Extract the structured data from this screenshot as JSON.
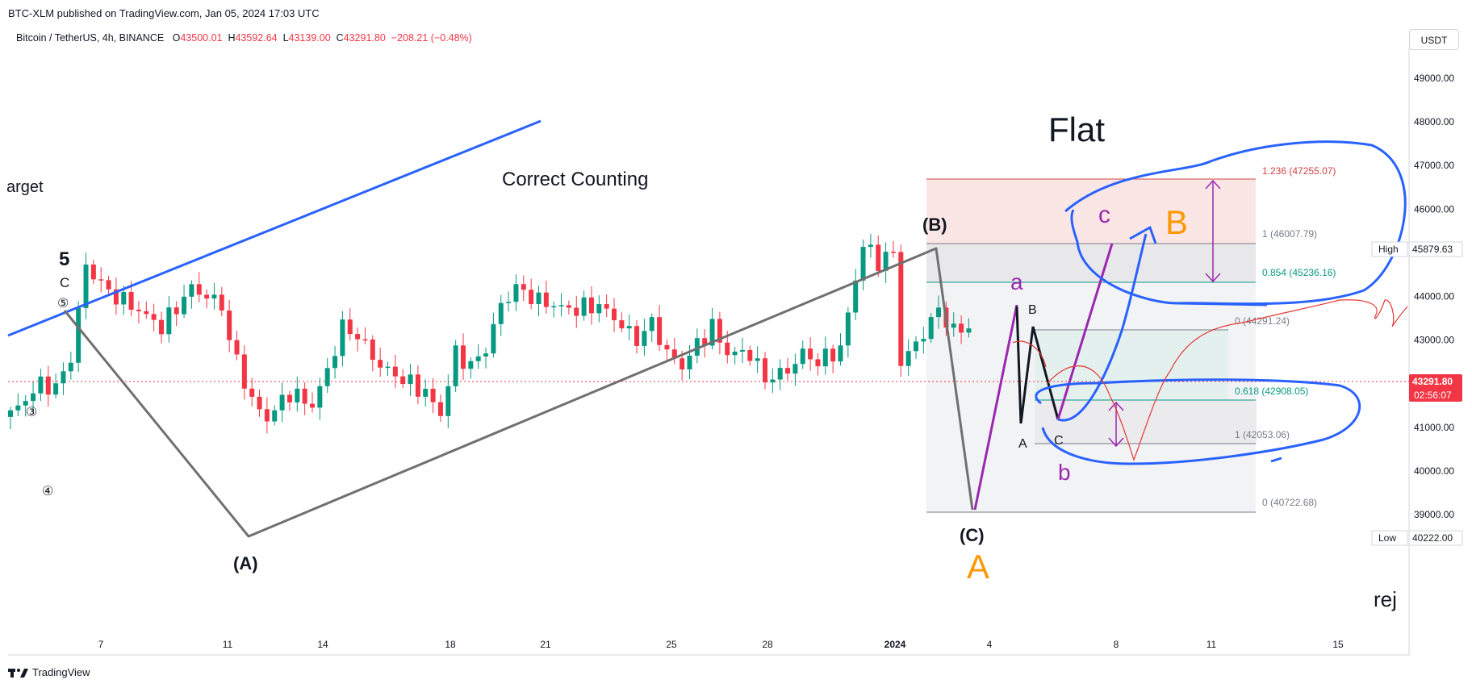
{
  "header": {
    "published": "BTC-XLM published on TradingView.com, Jan 05, 2024 17:03 UTC",
    "footer_brand": "TradingView"
  },
  "symbol_bar": {
    "name": "Bitcoin / TetherUS, 4h, BINANCE",
    "open_label": "O",
    "open": "43500.01",
    "high_label": "H",
    "high": "43592.64",
    "low_label": "L",
    "low": "43139.00",
    "close_label": "C",
    "close": "43291.80",
    "change": "−208.21 (−0.48%)",
    "currency_button": "USDT"
  },
  "price_tags": {
    "current_price": "43291.80",
    "countdown": "02:56:07",
    "high_label": "High",
    "high_value": "45879.63",
    "low_label": "Low",
    "low_value": "40222.00"
  },
  "annotations": {
    "correct_counting": "Correct Counting",
    "flat": "Flat",
    "target_partial": "arget",
    "rej_partial": "rej",
    "wave_5": "5",
    "wave_c_top": "C",
    "circle_5": "⑤",
    "circle_3": "③",
    "circle_4": "④",
    "wave_A_paren": "(A)",
    "wave_B_paren": "(B)",
    "wave_C_paren": "(C)",
    "big_A": "A",
    "big_B": "B",
    "small_a": "a",
    "small_b": "b",
    "small_c": "c",
    "mini_A": "A",
    "mini_B": "B",
    "mini_C": "C"
  },
  "fib_levels": [
    {
      "label": "1.236 (47255.07)",
      "price": 47255.07,
      "color": "#d14343"
    },
    {
      "label": "1 (46007.79)",
      "price": 46007.79,
      "color": "#787b86"
    },
    {
      "label": "0.854 (45236.16)",
      "price": 45236.16,
      "color": "#089981"
    },
    {
      "label": "0 (44291.24)",
      "price": 44291.24,
      "color": "#787b86"
    },
    {
      "label": "0.618 (42908.05)",
      "price": 42908.05,
      "color": "#089981"
    },
    {
      "label": "1 (42053.06)",
      "price": 42053.06,
      "color": "#787b86"
    },
    {
      "label": "0 (40722.68)",
      "price": 40722.68,
      "color": "#787b86"
    }
  ],
  "colors": {
    "up": "#089981",
    "down": "#f23645",
    "blue": "#2962ff",
    "gray": "#6e6e6e",
    "purple": "#9c27b0",
    "orange": "#ff9800"
  },
  "chart_data": {
    "type": "candlestick",
    "symbol": "Bitcoin / TetherUS",
    "interval": "4h",
    "exchange": "BINANCE",
    "y_ticks": [
      39000,
      40000,
      41000,
      42000,
      43000,
      44000,
      45000,
      46000,
      47000,
      48000,
      49000
    ],
    "y_tick_labels": [
      "39000.00",
      "40000.00",
      "41000.00",
      "42000.00",
      "43000.00",
      "44000.00",
      "45000.00",
      "46000.00",
      "47000.00",
      "48000.00",
      "49000.00"
    ],
    "x_ticks": [
      "7",
      "11",
      "14",
      "18",
      "21",
      "25",
      "28",
      "2024",
      "4",
      "8",
      "11",
      "15"
    ],
    "ohlc_waypoints": [
      [
        0,
        41300
      ],
      [
        4,
        42000
      ],
      [
        6,
        41900
      ],
      [
        8,
        42600
      ],
      [
        10,
        44700
      ],
      [
        13,
        44100
      ],
      [
        16,
        43800
      ],
      [
        20,
        43300
      ],
      [
        24,
        44200
      ],
      [
        28,
        43800
      ],
      [
        29,
        43000
      ],
      [
        32,
        41600
      ],
      [
        34,
        41200
      ],
      [
        37,
        41800
      ],
      [
        40,
        41500
      ],
      [
        42,
        42300
      ],
      [
        44,
        43300
      ],
      [
        46,
        43100
      ],
      [
        49,
        42400
      ],
      [
        52,
        42100
      ],
      [
        55,
        41800
      ],
      [
        57,
        41300
      ],
      [
        59,
        42700
      ],
      [
        61,
        42400
      ],
      [
        63,
        42800
      ],
      [
        65,
        43800
      ],
      [
        67,
        44200
      ],
      [
        70,
        43900
      ],
      [
        74,
        43700
      ],
      [
        78,
        43800
      ],
      [
        80,
        43500
      ],
      [
        83,
        43000
      ],
      [
        85,
        43400
      ],
      [
        87,
        42700
      ],
      [
        89,
        42400
      ],
      [
        91,
        42900
      ],
      [
        93,
        43300
      ],
      [
        95,
        42700
      ],
      [
        98,
        42700
      ],
      [
        100,
        42100
      ],
      [
        103,
        42300
      ],
      [
        105,
        42700
      ],
      [
        107,
        42500
      ],
      [
        110,
        42800
      ],
      [
        112,
        44400
      ],
      [
        113,
        45200
      ],
      [
        115,
        44800
      ],
      [
        117,
        45000
      ],
      [
        118,
        42500
      ],
      [
        120,
        42900
      ],
      [
        123,
        43700
      ],
      [
        125,
        43200
      ],
      [
        127,
        43300
      ]
    ]
  }
}
